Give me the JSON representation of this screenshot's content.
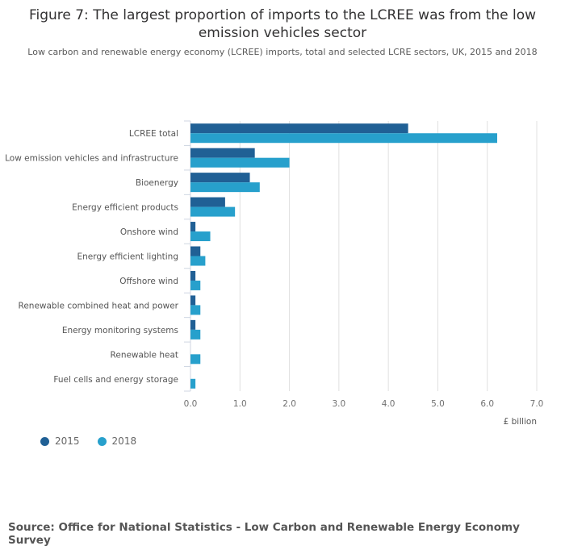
{
  "chart_data": {
    "type": "bar",
    "orientation": "horizontal",
    "title": "Figure 7: The largest proportion of imports to the LCREE was from the low emission vehicles sector",
    "subtitle": "Low carbon and renewable energy economy (LCREE) imports, total and selected LCRE sectors, UK, 2015 and 2018",
    "categories": [
      "LCREE total",
      "Low emission vehicles and infrastructure",
      "Bioenergy",
      "Energy efficient products",
      "Onshore wind",
      "Energy efficient lighting",
      "Offshore wind",
      "Renewable combined heat and power",
      "Energy monitoring systems",
      "Renewable heat",
      "Fuel cells and energy storage"
    ],
    "series": [
      {
        "name": "2015",
        "color": "#206095",
        "values": [
          4.4,
          1.3,
          1.2,
          0.7,
          0.1,
          0.2,
          0.1,
          0.1,
          0.1,
          0,
          0
        ]
      },
      {
        "name": "2018",
        "color": "#27a0cc",
        "values": [
          6.2,
          2.0,
          1.4,
          0.9,
          0.4,
          0.3,
          0.2,
          0.2,
          0.2,
          0.2,
          0.1
        ]
      }
    ],
    "xlabel": "£ billion",
    "ylabel": "",
    "xlim": [
      0,
      7
    ],
    "xticks": [
      "0.0",
      "1.0",
      "2.0",
      "3.0",
      "4.0",
      "5.0",
      "6.0",
      "7.0"
    ],
    "grid": true,
    "legend_position": "bottom-left",
    "source": "Source: Office for National Statistics - Low Carbon and Renewable Energy Economy Survey"
  }
}
